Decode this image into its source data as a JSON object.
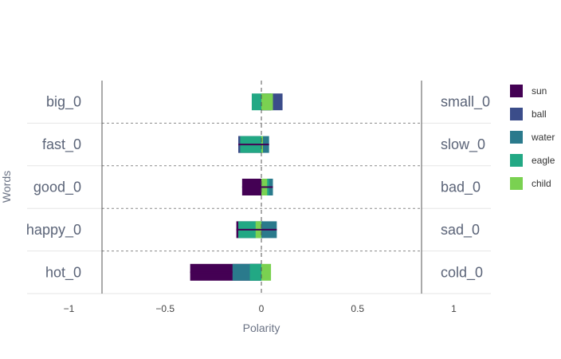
{
  "chart_data": {
    "type": "bar",
    "orientation": "horizontal",
    "xlabel": "Polarity",
    "ylabel": "Words",
    "xlim": [
      -1,
      1
    ],
    "x_ticks": [
      "−1",
      "−0.5",
      "0",
      "0.5",
      "1"
    ],
    "x_tick_values": [
      -1,
      -0.5,
      0,
      0.5,
      1
    ],
    "left_words": [
      "big_0",
      "fast_0",
      "good_0",
      "happy_0",
      "hot_0"
    ],
    "right_words": [
      "small_0",
      "slow_0",
      "bad_0",
      "sad_0",
      "cold_0"
    ],
    "legend_placement": "right",
    "series": [
      {
        "name": "sun",
        "color": "#440154",
        "values": [
          0.05,
          -0.12,
          -0.1,
          -0.13,
          -0.37
        ]
      },
      {
        "name": "ball",
        "color": "#3b4d8a",
        "values": [
          0.11,
          -0.12,
          0.05,
          0.0,
          -0.06
        ]
      },
      {
        "name": "water",
        "color": "#2a7a8c",
        "values": [
          0.05,
          0.04,
          0.06,
          0.08,
          -0.15
        ]
      },
      {
        "name": "eagle",
        "color": "#22a884",
        "values": [
          -0.05,
          -0.11,
          0.04,
          -0.12,
          -0.06
        ]
      },
      {
        "name": "child",
        "color": "#7ad151",
        "values": [
          0.06,
          0.0,
          0.03,
          -0.03,
          0.05
        ]
      }
    ]
  }
}
